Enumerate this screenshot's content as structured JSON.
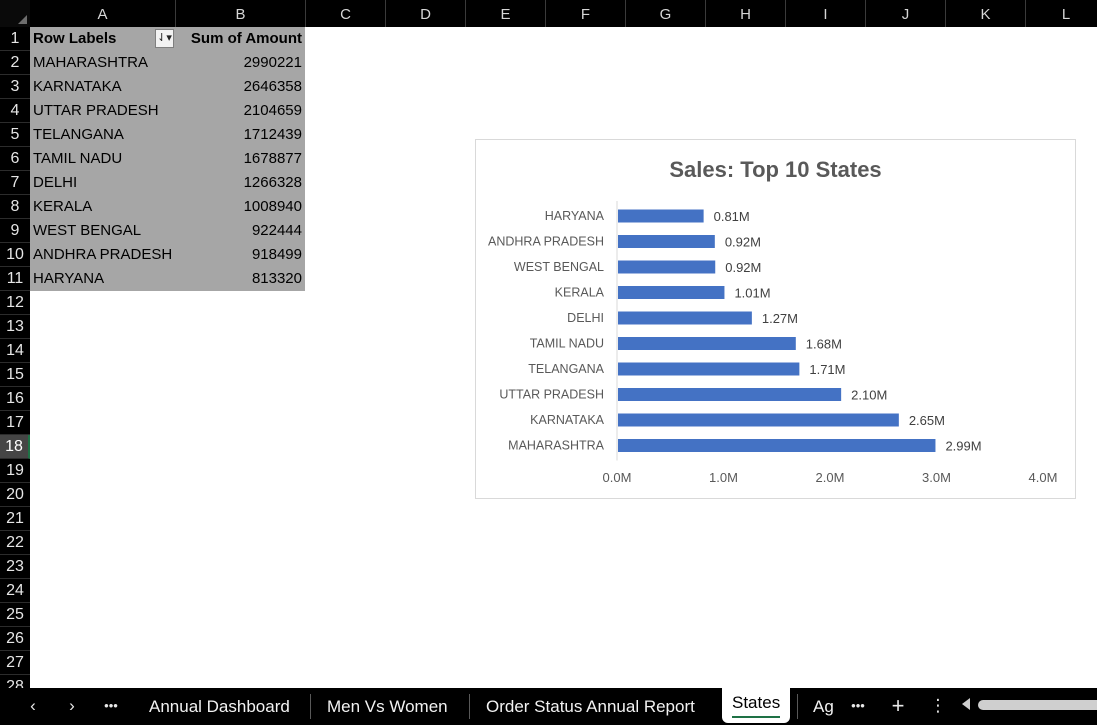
{
  "columns": [
    "A",
    "B",
    "C",
    "D",
    "E",
    "F",
    "G",
    "H",
    "I",
    "J",
    "K",
    "L"
  ],
  "rows": [
    "1",
    "2",
    "3",
    "4",
    "5",
    "6",
    "7",
    "8",
    "9",
    "10",
    "11",
    "12",
    "13",
    "14",
    "15",
    "16",
    "17",
    "18",
    "19",
    "20",
    "21",
    "22",
    "23",
    "24",
    "25",
    "26",
    "27",
    "28"
  ],
  "active_row": "18",
  "pivot": {
    "header_label": "Row Labels",
    "header_value": "Sum of Amount",
    "rows": [
      {
        "label": "MAHARASHTRA",
        "value": "2990221"
      },
      {
        "label": "KARNATAKA",
        "value": "2646358"
      },
      {
        "label": "UTTAR PRADESH",
        "value": "2104659"
      },
      {
        "label": "TELANGANA",
        "value": "1712439"
      },
      {
        "label": "TAMIL NADU",
        "value": "1678877"
      },
      {
        "label": "DELHI",
        "value": "1266328"
      },
      {
        "label": "KERALA",
        "value": "1008940"
      },
      {
        "label": "WEST BENGAL",
        "value": "922444"
      },
      {
        "label": "ANDHRA PRADESH",
        "value": "918499"
      },
      {
        "label": "HARYANA",
        "value": "813320"
      }
    ]
  },
  "chart_data": {
    "type": "bar",
    "orientation": "horizontal",
    "title": "Sales: Top 10 States",
    "categories": [
      "HARYANA",
      "ANDHRA PRADESH",
      "WEST BENGAL",
      "KERALA",
      "DELHI",
      "TAMIL NADU",
      "TELANGANA",
      "UTTAR PRADESH",
      "KARNATAKA",
      "MAHARASHTRA"
    ],
    "values": [
      813320,
      918499,
      922444,
      1008940,
      1266328,
      1678877,
      1712439,
      2104659,
      2646358,
      2990221
    ],
    "data_labels": [
      "0.81M",
      "0.92M",
      "0.92M",
      "1.01M",
      "1.27M",
      "1.68M",
      "1.71M",
      "2.10M",
      "2.65M",
      "2.99M"
    ],
    "xticks": [
      0,
      1000000,
      2000000,
      3000000,
      4000000
    ],
    "xtick_labels": [
      "0.0M",
      "1.0M",
      "2.0M",
      "3.0M",
      "4.0M"
    ],
    "xlim": [
      0,
      4000000
    ],
    "bar_color": "#4472c4",
    "grid": false,
    "legend": "none"
  },
  "tabs": {
    "prev_icon": "chevron-left-icon",
    "next_icon": "chevron-right-icon",
    "more_label": "•••",
    "items": [
      {
        "label": "Annual Dashboard"
      },
      {
        "label": "Men Vs Women"
      },
      {
        "label": "Order Status Annual Report"
      },
      {
        "label": "States"
      },
      {
        "label": "Ag"
      }
    ],
    "active": "States",
    "more_right_label": "•••",
    "add_label": "+",
    "options_label": "⋮"
  },
  "colors": {
    "header_bg": "#000000",
    "pivot_bg": "#a6a6a6",
    "active_row_bg": "#454545",
    "accent": "#1e7145"
  }
}
